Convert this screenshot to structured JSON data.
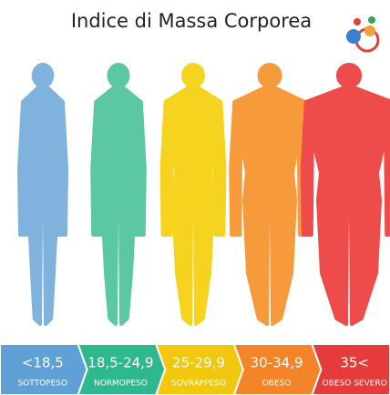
{
  "header": {
    "title": "Indice di Massa Corporea"
  },
  "categories": [
    {
      "range": "<18,5",
      "label": "SOTTOPESO"
    },
    {
      "range": "18,5-24,9",
      "label": "NORMOPESO"
    },
    {
      "range": "25-29,9",
      "label": "SOVRAPPESO"
    },
    {
      "range": "30-34,9",
      "label": "OBESO"
    },
    {
      "range": "35<",
      "label": "OBESO SEVERO"
    }
  ]
}
